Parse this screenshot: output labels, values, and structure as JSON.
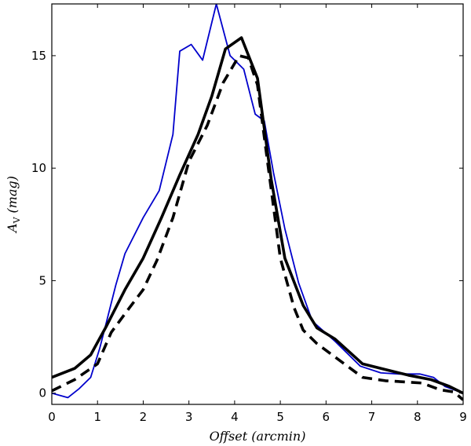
{
  "chart_data": {
    "type": "line",
    "title": "",
    "xlabel": "Offset (arcmin)",
    "ylabel_main": "A",
    "ylabel_sub": "V",
    "ylabel_unit": "(mag)",
    "xlim": [
      0,
      9
    ],
    "ylim": [
      -0.5,
      17.3
    ],
    "xticks": [
      0,
      1,
      2,
      3,
      4,
      5,
      6,
      7,
      8,
      9
    ],
    "yticks": [
      0,
      5,
      10,
      15
    ],
    "grid": false,
    "series": [
      {
        "name": "blue thin line",
        "color": "#0000cc",
        "style": "solid-thin",
        "x": [
          0.0,
          0.35,
          0.6,
          0.85,
          1.05,
          1.2,
          1.4,
          1.6,
          2.0,
          2.35,
          2.65,
          2.8,
          3.05,
          3.3,
          3.6,
          3.9,
          4.2,
          4.45,
          4.65,
          4.85,
          5.1,
          5.4,
          5.7,
          6.2,
          6.75,
          7.2,
          7.6,
          8.05,
          8.35,
          8.6,
          9.0
        ],
        "y": [
          0.0,
          -0.2,
          0.2,
          0.7,
          2.0,
          3.2,
          4.8,
          6.2,
          7.8,
          9.0,
          11.5,
          15.2,
          15.5,
          14.8,
          17.3,
          15.0,
          14.4,
          12.4,
          12.1,
          9.8,
          7.3,
          4.9,
          3.2,
          2.3,
          1.2,
          0.9,
          0.85,
          0.85,
          0.7,
          0.3,
          0.0
        ]
      },
      {
        "name": "black solid line",
        "color": "#000000",
        "style": "solid-thick",
        "x": [
          0.0,
          0.5,
          0.85,
          1.2,
          1.6,
          2.0,
          2.4,
          2.8,
          3.2,
          3.5,
          3.8,
          4.15,
          4.5,
          4.8,
          5.1,
          5.5,
          5.8,
          6.2,
          6.8,
          7.3,
          7.8,
          8.3,
          8.7,
          9.0
        ],
        "y": [
          0.7,
          1.1,
          1.7,
          3.0,
          4.6,
          6.0,
          7.8,
          9.7,
          11.5,
          13.2,
          15.3,
          15.8,
          14.0,
          9.5,
          6.0,
          3.9,
          2.9,
          2.4,
          1.3,
          1.05,
          0.8,
          0.6,
          0.3,
          0.0
        ]
      },
      {
        "name": "black dashed line",
        "color": "#000000",
        "style": "dashed-thick",
        "x": [
          0.0,
          0.5,
          1.0,
          1.3,
          1.7,
          2.0,
          2.3,
          2.65,
          3.0,
          3.4,
          3.75,
          4.1,
          4.3,
          4.5,
          4.7,
          5.0,
          5.3,
          5.5,
          5.8,
          6.2,
          6.8,
          7.3,
          7.7,
          8.1,
          8.5,
          8.8,
          9.0
        ],
        "y": [
          0.1,
          0.6,
          1.3,
          2.7,
          3.8,
          4.6,
          5.9,
          7.8,
          10.3,
          11.9,
          13.8,
          15.0,
          14.9,
          13.7,
          10.6,
          6.0,
          3.8,
          2.8,
          2.2,
          1.6,
          0.7,
          0.55,
          0.5,
          0.45,
          0.15,
          0.05,
          -0.3
        ]
      }
    ]
  }
}
